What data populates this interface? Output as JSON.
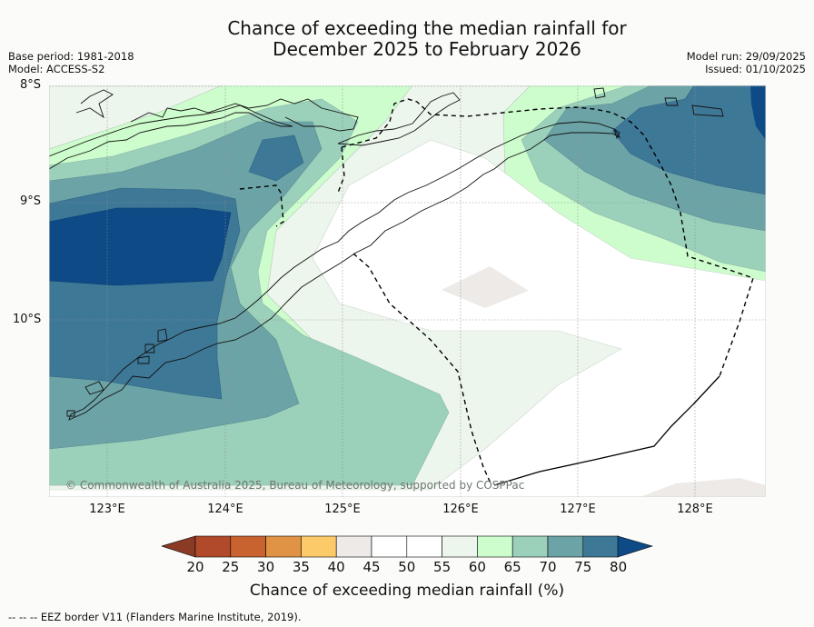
{
  "title": {
    "line1": "Chance of exceeding the median rainfall for",
    "line2": "December 2025 to February 2026"
  },
  "meta_left": {
    "base_period": "Base period: 1981-2018",
    "model": "Model: ACCESS-S2"
  },
  "meta_right": {
    "model_run": "Model run: 29/09/2025",
    "issued": "Issued: 01/10/2025"
  },
  "map": {
    "lat_labels": [
      "8°S",
      "9°S",
      "10°S"
    ],
    "lon_labels": [
      "123°E",
      "124°E",
      "125°E",
      "126°E",
      "127°E",
      "128°E"
    ],
    "credit": "© Commonwealth of Australia 2025, Bureau of Meteorology, supported by COSPPac"
  },
  "colorbar": {
    "labels": [
      "20",
      "25",
      "30",
      "35",
      "40",
      "45",
      "50",
      "55",
      "60",
      "65",
      "70",
      "75",
      "80"
    ],
    "low_color": "#8b3a26",
    "high_color": "#0e4a86",
    "colors": [
      "#b14a2b",
      "#c8622f",
      "#e09345",
      "#fdca6a",
      "#edeae7",
      "#ffffff",
      "#ffffff",
      "#edf6ed",
      "#cdfdcc",
      "#9bd0bb",
      "#6ca3a6",
      "#3e7897"
    ],
    "title": "Chance of exceeding median rainfall (%)"
  },
  "footnote": "--  --  -- EEZ border V11 (Flanders Marine Institute, 2019)."
}
